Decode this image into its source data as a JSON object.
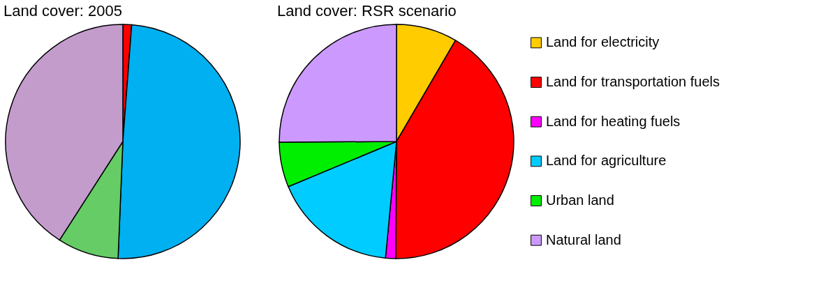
{
  "chart_data": [
    {
      "type": "pie",
      "title": "Land cover: 2005",
      "categories": [
        null,
        null,
        null,
        null,
        null,
        null
      ],
      "values": [
        null,
        1.2,
        0,
        49.3,
        8.4,
        40.8
      ],
      "colors": [
        "#ffc000",
        "#ff0000",
        "#ff00ff",
        "#00b0f0",
        "#66cc66",
        "#c49ccc"
      ],
      "legend": false
    },
    {
      "type": "pie",
      "title": "Land cover: RSR scenario",
      "categories": [
        "Land for electricity",
        "Land for transportation fuels",
        "Land for heating fuels",
        "Land for agriculture",
        "Urban land",
        "Natural land"
      ],
      "values": [
        8.4,
        41.7,
        1.4,
        17.2,
        6.2,
        25.1
      ],
      "colors": [
        "#ffcc00",
        "#ff0000",
        "#ff00ff",
        "#00ccff",
        "#00ee00",
        "#cc99ff"
      ],
      "legend": "right"
    }
  ]
}
